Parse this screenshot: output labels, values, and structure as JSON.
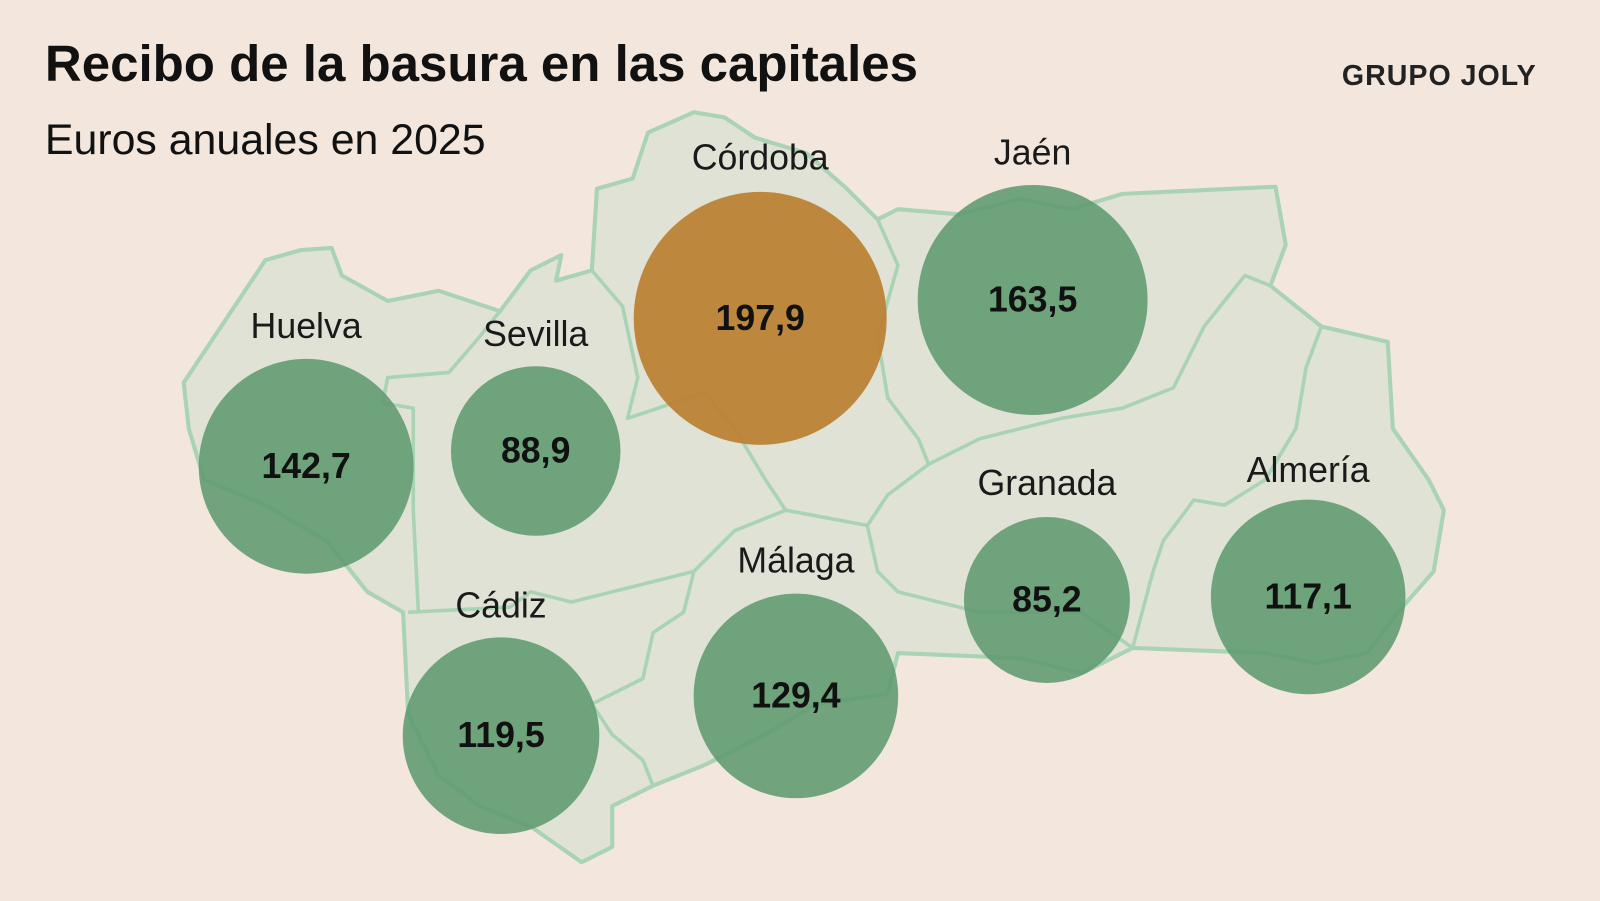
{
  "header": {
    "title": "Recibo de la basura en las capitales",
    "subtitle": "Euros anuales en 2025"
  },
  "brand": "GRUPO JOLY",
  "provinces": {
    "names": [
      "Huelva",
      "Sevilla",
      "Córdoba",
      "Jaén",
      "Granada",
      "Almería",
      "Cádiz",
      "Málaga"
    ],
    "values": [
      142.7,
      88.9,
      197.9,
      163.5,
      85.2,
      117.1,
      119.5,
      129.4
    ],
    "value_labels": [
      "142,7",
      "88,9",
      "197,9",
      "163,5",
      "85,2",
      "117,1",
      "119,5",
      "129,4"
    ],
    "colors": [
      "#5f9a70",
      "#5f9a70",
      "#bc8236",
      "#5f9a70",
      "#5f9a70",
      "#5f9a70",
      "#5f9a70",
      "#5f9a70"
    ]
  }
}
